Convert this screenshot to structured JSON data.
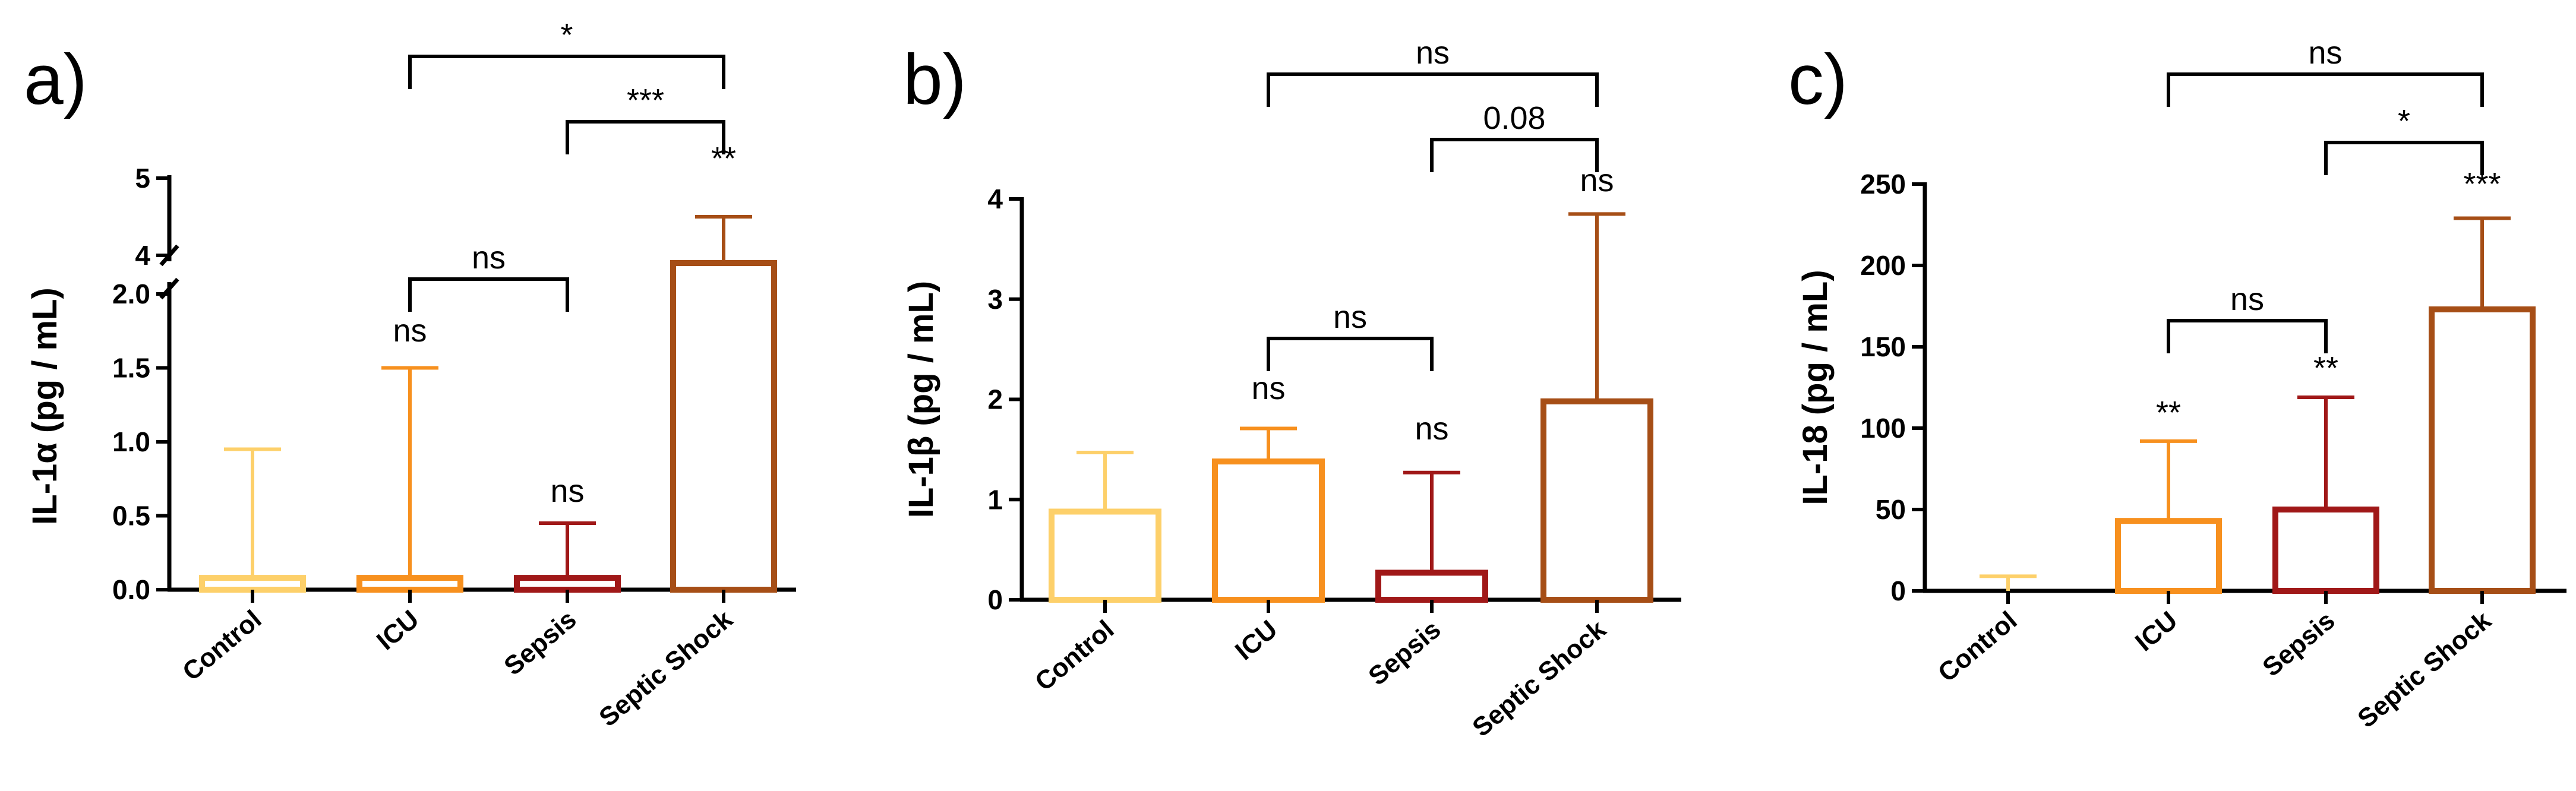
{
  "figure": {
    "colors": {
      "Control": "#FDD06A",
      "ICU": "#F7901E",
      "Sepsis": "#A01818",
      "Septic Shock": "#A64E16",
      "axis": "#000000"
    }
  },
  "chart_data": [
    {
      "panel": "a)",
      "type": "bar",
      "ylabel_prefix": "IL-1",
      "ylabel_greek": "α",
      "ylabel_suffix": " (pg / mL)",
      "categories": [
        "Control",
        "ICU",
        "Sepsis",
        "Septic Shock"
      ],
      "values": [
        0.08,
        0.08,
        0.08,
        3.6
      ],
      "error_upper": [
        0.95,
        1.5,
        0.45,
        4.5
      ],
      "y_axis_break": {
        "lower_segment": [
          0,
          2.0
        ],
        "upper_segment": [
          4,
          5
        ]
      },
      "lower_ticks": [
        "0.0",
        "0.5",
        "1.0",
        "1.5",
        "2.0"
      ],
      "upper_ticks": [
        "4",
        "5"
      ],
      "bar_annotations": [
        {
          "category": "ICU",
          "text": "ns"
        },
        {
          "category": "Sepsis",
          "text": "ns"
        },
        {
          "category": "Septic Shock",
          "text": "**"
        }
      ],
      "brackets": [
        {
          "from": "ICU",
          "to": "Sepsis",
          "text": "ns"
        },
        {
          "from": "Sepsis",
          "to": "Septic Shock",
          "text": "***"
        },
        {
          "from": "ICU",
          "to": "Septic Shock",
          "text": "*"
        }
      ]
    },
    {
      "panel": "b)",
      "type": "bar",
      "ylabel_prefix": "IL-1",
      "ylabel_greek": "β",
      "ylabel_suffix": " (pg / mL)",
      "categories": [
        "Control",
        "ICU",
        "Sepsis",
        "Septic Shock"
      ],
      "values": [
        0.88,
        1.38,
        0.27,
        1.98
      ],
      "error_upper": [
        1.47,
        1.71,
        1.27,
        3.85
      ],
      "ylim": [
        0,
        4
      ],
      "ticks": [
        "0",
        "1",
        "2",
        "3",
        "4"
      ],
      "bar_annotations": [
        {
          "category": "ICU",
          "text": "ns"
        },
        {
          "category": "Sepsis",
          "text": "ns"
        },
        {
          "category": "Septic Shock",
          "text": "ns"
        }
      ],
      "brackets": [
        {
          "from": "ICU",
          "to": "Sepsis",
          "text": "ns"
        },
        {
          "from": "Sepsis",
          "to": "Septic Shock",
          "text": "0.08"
        },
        {
          "from": "ICU",
          "to": "Septic Shock",
          "text": "ns"
        }
      ]
    },
    {
      "panel": "c)",
      "type": "bar",
      "ylabel_prefix": "IL-18",
      "ylabel_greek": "",
      "ylabel_suffix": " (pg / mL)",
      "categories": [
        "Control",
        "ICU",
        "Sepsis",
        "Septic Shock"
      ],
      "values": [
        0,
        43,
        50,
        173
      ],
      "error_upper": [
        9,
        92,
        119,
        229
      ],
      "ylim": [
        0,
        250
      ],
      "ticks": [
        "0",
        "50",
        "100",
        "150",
        "200",
        "250"
      ],
      "bar_annotations": [
        {
          "category": "ICU",
          "text": "**"
        },
        {
          "category": "Sepsis",
          "text": "**"
        },
        {
          "category": "Septic Shock",
          "text": "***"
        }
      ],
      "brackets": [
        {
          "from": "ICU",
          "to": "Sepsis",
          "text": "ns"
        },
        {
          "from": "Sepsis",
          "to": "Septic Shock",
          "text": "*"
        },
        {
          "from": "ICU",
          "to": "Septic Shock",
          "text": "ns"
        }
      ]
    }
  ]
}
